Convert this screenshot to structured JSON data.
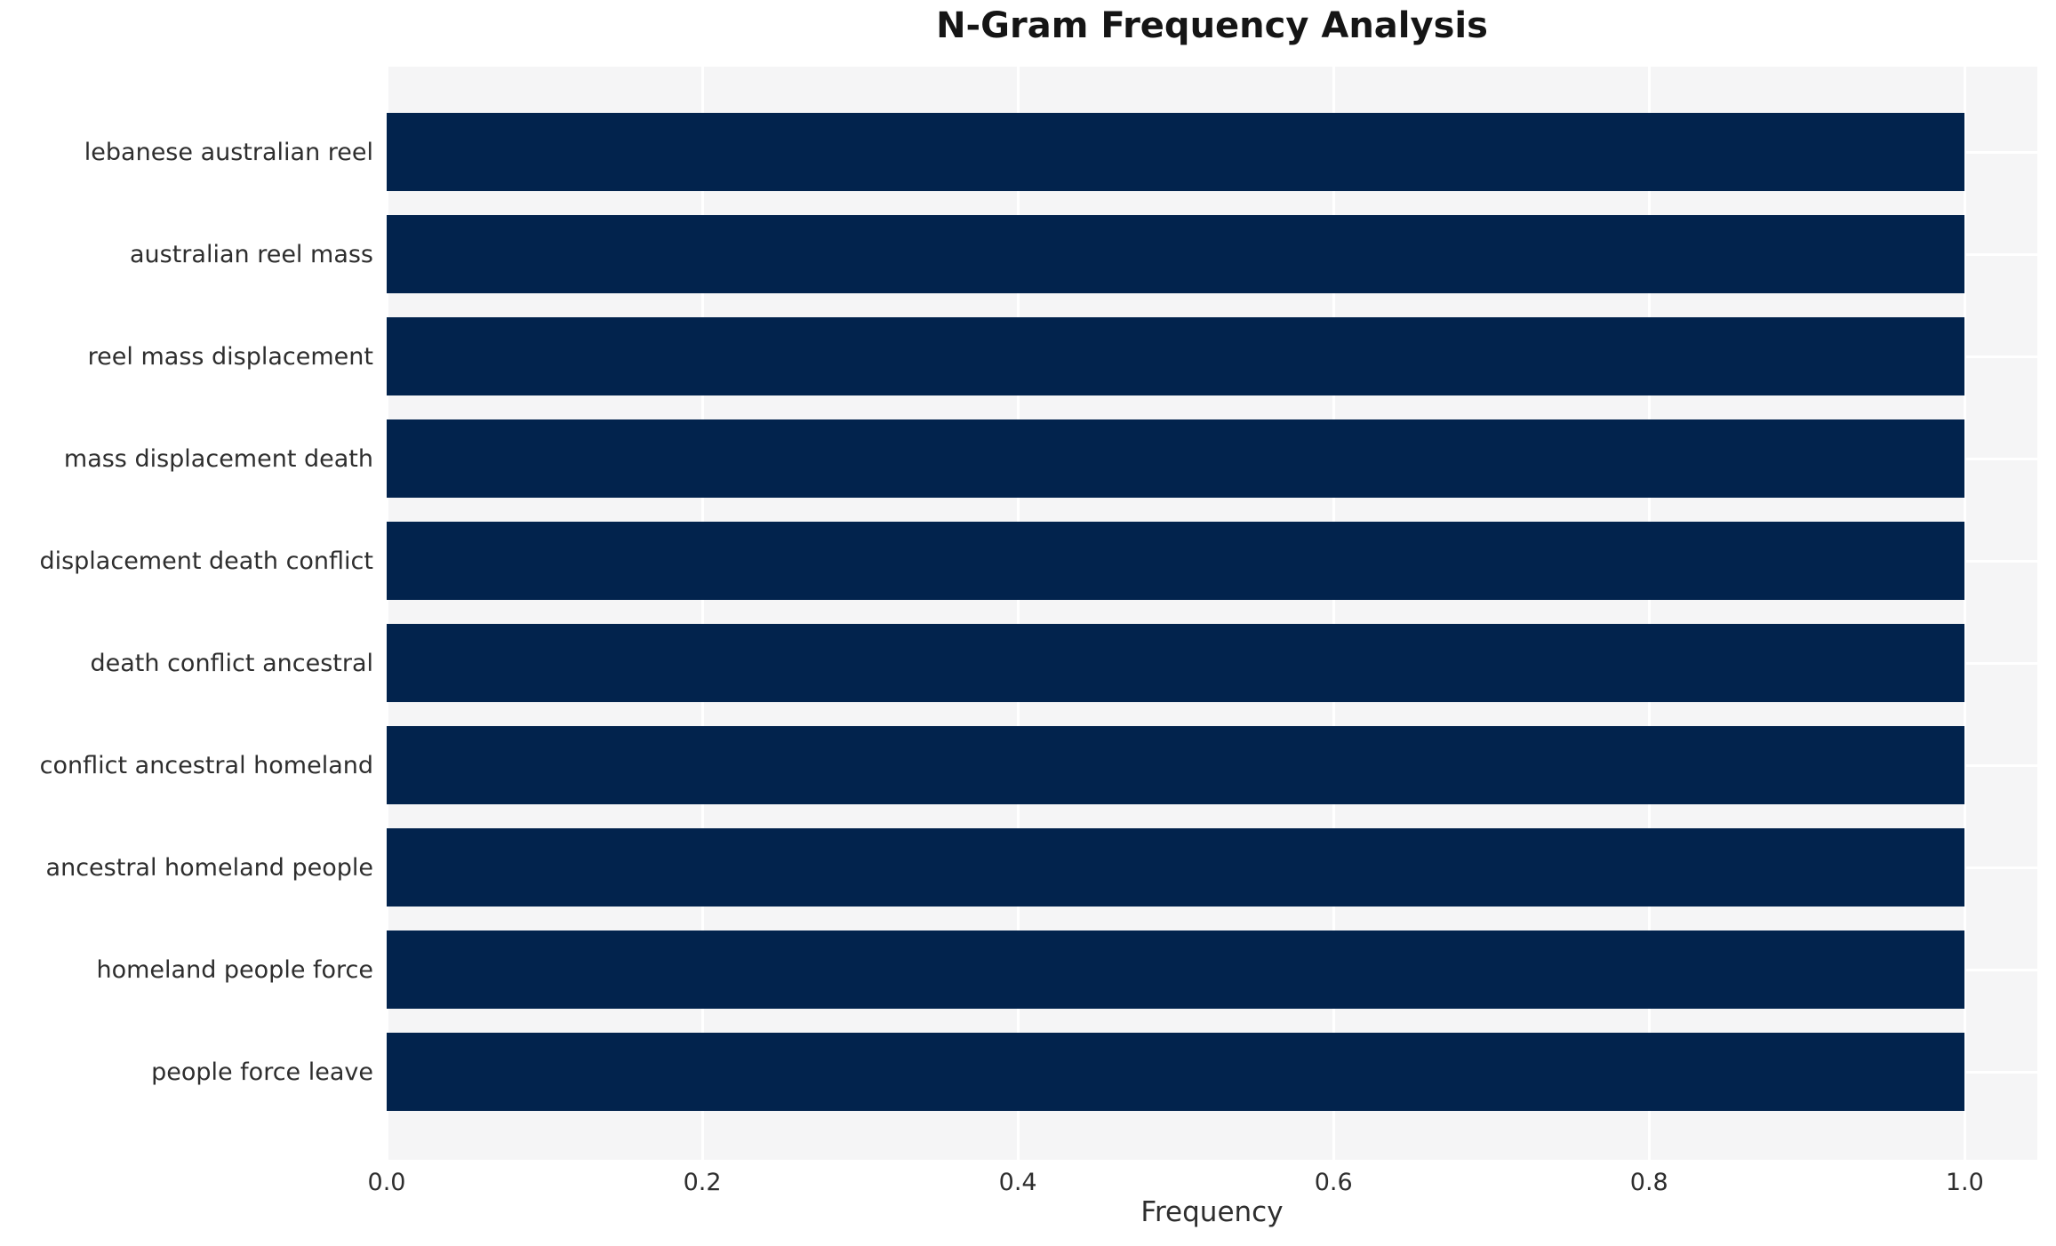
{
  "chart_data": {
    "type": "bar",
    "orientation": "horizontal",
    "title": "N-Gram Frequency Analysis",
    "xlabel": "Frequency",
    "ylabel": "",
    "categories": [
      "lebanese australian reel",
      "australian reel mass",
      "reel mass displacement",
      "mass displacement death",
      "displacement death conflict",
      "death conflict ancestral",
      "conflict ancestral homeland",
      "ancestral homeland people",
      "homeland people force",
      "people force leave"
    ],
    "values": [
      1.0,
      1.0,
      1.0,
      1.0,
      1.0,
      1.0,
      1.0,
      1.0,
      1.0,
      1.0
    ],
    "xticks": [
      0.0,
      0.2,
      0.4,
      0.6,
      0.8,
      1.0
    ],
    "xlim": [
      0,
      1.046
    ],
    "grid": true,
    "legend": false,
    "colors": {
      "bar": "#02234d",
      "plot_background": "#f5f5f6",
      "figure_background": "#ffffff",
      "gridline": "#ffffff",
      "title_text": "#151515",
      "label_text": "#2e2e2e"
    }
  }
}
